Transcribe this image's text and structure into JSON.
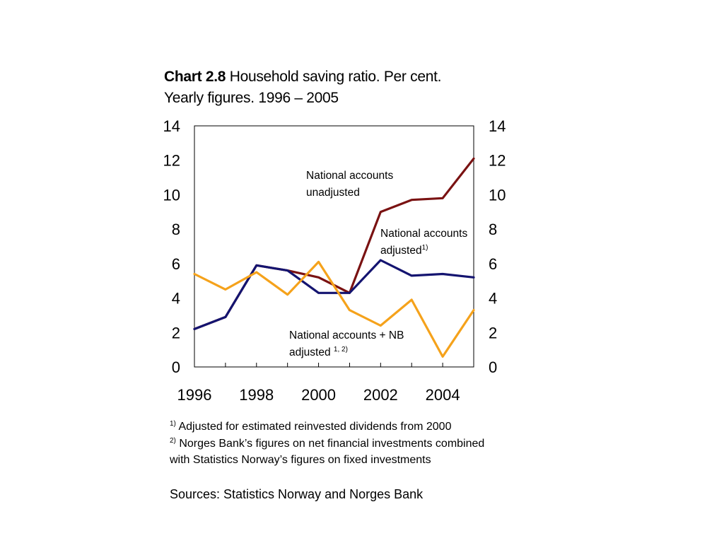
{
  "title": {
    "bold": "Chart 2.8",
    "rest": "Household saving ratio. Per cent.",
    "line2": "Yearly figures. 1996 – 2005"
  },
  "chart_data": {
    "type": "line",
    "x": [
      1996,
      1997,
      1998,
      1999,
      2000,
      2001,
      2002,
      2003,
      2004,
      2005
    ],
    "xlim": [
      1996,
      2005
    ],
    "x_tick_labels": [
      "1996",
      "1998",
      "2000",
      "2002",
      "2004"
    ],
    "ylim": [
      0,
      14
    ],
    "y_ticks_left": [
      "0",
      "2",
      "4",
      "6",
      "8",
      "10",
      "12",
      "14"
    ],
    "y_ticks_right": [
      "0",
      "2",
      "4",
      "6",
      "8",
      "10",
      "12",
      "14"
    ],
    "grid": false,
    "series": [
      {
        "color": "#7a1212",
        "values": [
          2.2,
          2.9,
          5.9,
          5.6,
          5.2,
          4.3,
          9.0,
          9.7,
          9.8,
          12.1
        ]
      },
      {
        "color": "#141470",
        "values": [
          2.2,
          2.9,
          5.9,
          5.6,
          4.3,
          4.3,
          6.2,
          5.3,
          5.4,
          5.2
        ]
      },
      {
        "color": "#f5a21b",
        "values": [
          5.4,
          4.5,
          5.5,
          4.2,
          6.1,
          3.3,
          2.4,
          3.9,
          0.6,
          3.3
        ]
      }
    ],
    "annotations": [
      {
        "lines": [
          "National accounts",
          "unadjusted"
        ],
        "sup": ""
      },
      {
        "lines": [
          "National accounts",
          "adjusted"
        ],
        "sup": "1)"
      },
      {
        "lines": [
          "National accounts + NB",
          "adjusted "
        ],
        "sup": "1, 2)"
      }
    ]
  },
  "footnotes": [
    {
      "mark": "1)",
      "text": " Adjusted for estimated reinvested dividends from 2000"
    },
    {
      "mark": "2)",
      "text": " Norges Bank’s figures on net financial investments combined"
    },
    {
      "mark": "",
      "text": "with Statistics Norway’s figures on fixed investments"
    }
  ],
  "sources": "Sources: Statistics Norway and Norges Bank"
}
